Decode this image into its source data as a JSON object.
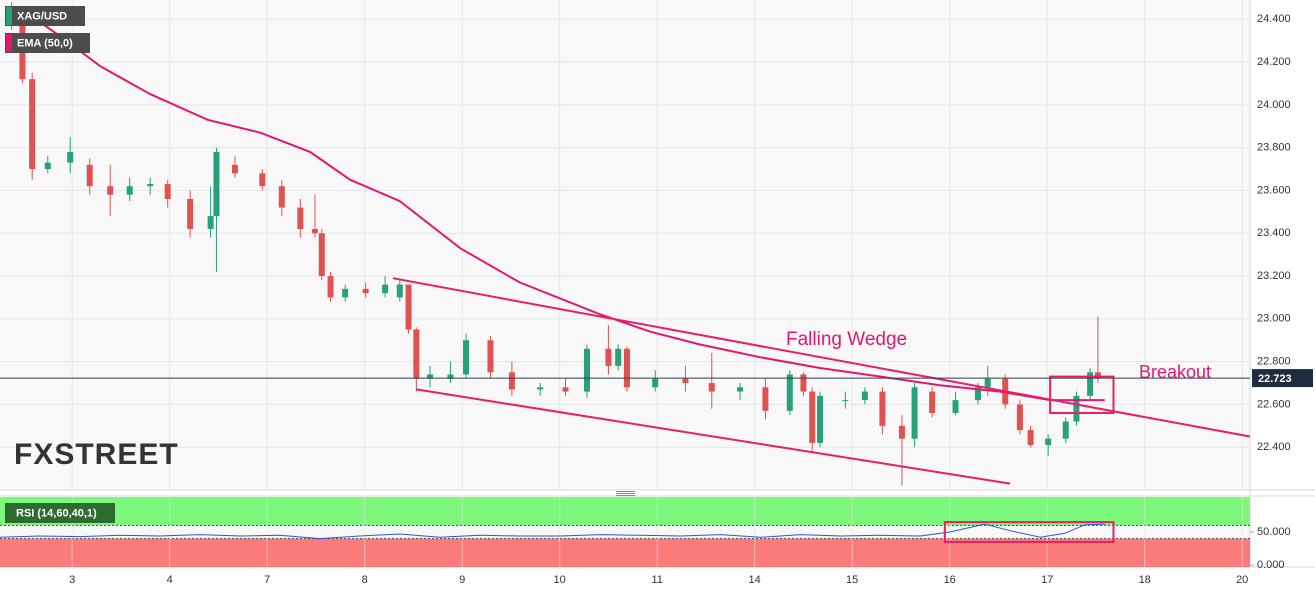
{
  "chart_data": [
    {
      "type": "candlestick",
      "series_name": "XAG/USD",
      "up_color": "#26a17b",
      "down_color": "#e0524f",
      "x": [
        0.38,
        0.49,
        0.59,
        0.75,
        0.98,
        1.18,
        1.39,
        1.59,
        1.8,
        1.98,
        2.21,
        2.42,
        2.48,
        2.67,
        2.95,
        3.15,
        3.34,
        3.49,
        3.56,
        3.65,
        3.8,
        4.01,
        4.21,
        4.36,
        4.45,
        4.53,
        4.67,
        4.88,
        5.04,
        5.29,
        5.51,
        5.8,
        6.06,
        6.28,
        6.5,
        6.6,
        6.69,
        6.98,
        7.29,
        7.56,
        7.85,
        8.11,
        8.36,
        8.5,
        8.59,
        8.67,
        8.93,
        9.13,
        9.31,
        9.51,
        9.64,
        9.82,
        10.06,
        10.29,
        10.39,
        10.57,
        10.72,
        10.83,
        11.01,
        11.19,
        11.3,
        11.44,
        11.52
      ],
      "open": [
        24.45,
        24.38,
        24.12,
        23.7,
        23.73,
        23.72,
        23.62,
        23.58,
        23.62,
        23.63,
        23.56,
        23.42,
        23.48,
        23.72,
        23.68,
        23.62,
        23.52,
        23.42,
        23.4,
        23.2,
        23.1,
        23.14,
        23.12,
        23.1,
        23.16,
        22.95,
        22.72,
        22.72,
        22.74,
        22.9,
        22.75,
        22.67,
        22.68,
        22.66,
        22.86,
        22.78,
        22.86,
        22.68,
        22.72,
        22.7,
        22.66,
        22.68,
        22.57,
        22.74,
        22.66,
        22.42,
        22.62,
        22.62,
        22.66,
        22.5,
        22.44,
        22.66,
        22.56,
        22.62,
        22.68,
        22.72,
        22.6,
        22.48,
        22.41,
        22.44,
        22.52,
        22.64,
        22.75
      ],
      "high": [
        24.48,
        24.42,
        24.15,
        23.76,
        23.85,
        23.75,
        23.72,
        23.66,
        23.66,
        23.65,
        23.6,
        23.62,
        23.8,
        23.76,
        23.7,
        23.65,
        23.56,
        23.58,
        23.42,
        23.22,
        23.16,
        23.17,
        23.2,
        23.18,
        23.16,
        22.96,
        22.78,
        22.8,
        22.93,
        22.92,
        22.8,
        22.7,
        22.72,
        22.88,
        22.97,
        22.88,
        22.87,
        22.76,
        22.78,
        22.84,
        22.7,
        22.72,
        22.76,
        22.75,
        22.68,
        22.66,
        22.66,
        22.68,
        22.68,
        22.55,
        22.7,
        22.68,
        22.66,
        22.7,
        22.78,
        22.74,
        22.62,
        22.5,
        22.46,
        22.54,
        22.66,
        22.77,
        23.01
      ],
      "low": [
        24.35,
        24.1,
        23.65,
        23.68,
        23.68,
        23.58,
        23.48,
        23.55,
        23.58,
        23.52,
        23.38,
        23.38,
        23.22,
        23.66,
        23.6,
        23.48,
        23.38,
        23.38,
        23.18,
        23.08,
        23.08,
        23.1,
        23.1,
        23.08,
        22.93,
        22.66,
        22.68,
        22.7,
        22.72,
        22.72,
        22.64,
        22.64,
        22.64,
        22.63,
        22.74,
        22.76,
        22.66,
        22.66,
        22.66,
        22.58,
        22.62,
        22.53,
        22.55,
        22.64,
        22.38,
        22.4,
        22.58,
        22.6,
        22.46,
        22.22,
        22.4,
        22.54,
        22.55,
        22.6,
        22.64,
        22.58,
        22.46,
        22.4,
        22.36,
        22.42,
        22.5,
        22.62,
        22.7
      ],
      "close": [
        24.38,
        24.12,
        23.7,
        23.73,
        23.78,
        23.62,
        23.58,
        23.62,
        23.63,
        23.56,
        23.42,
        23.48,
        23.78,
        23.68,
        23.62,
        23.52,
        23.42,
        23.4,
        23.2,
        23.1,
        23.14,
        23.12,
        23.16,
        23.16,
        22.95,
        22.72,
        22.74,
        22.74,
        22.9,
        22.75,
        22.67,
        22.68,
        22.66,
        22.86,
        22.78,
        22.86,
        22.68,
        22.72,
        22.7,
        22.66,
        22.68,
        22.57,
        22.74,
        22.66,
        22.42,
        22.64,
        22.62,
        22.66,
        22.5,
        22.44,
        22.68,
        22.56,
        22.62,
        22.68,
        22.72,
        22.6,
        22.48,
        22.41,
        22.44,
        22.52,
        22.64,
        22.75,
        22.72
      ],
      "series": [
        {
          "name": "EMA (50,0)",
          "color": "#e3186d",
          "x": [
            0.47,
            0.88,
            1.29,
            1.8,
            2.39,
            2.93,
            3.44,
            3.85,
            4.36,
            4.98,
            5.59,
            6.42,
            6.93,
            7.44,
            8.06,
            8.67,
            9.29,
            9.9,
            10.52,
            11.03,
            11.44,
            11.59
          ],
          "values": [
            24.45,
            24.32,
            24.18,
            24.05,
            23.93,
            23.87,
            23.78,
            23.65,
            23.55,
            23.33,
            23.17,
            23.02,
            22.94,
            22.88,
            22.82,
            22.77,
            22.73,
            22.69,
            22.66,
            22.62,
            22.62,
            22.62
          ]
        }
      ],
      "trendlines": [
        {
          "color": "#e91e63",
          "x": [
            4.29,
            13.08
          ],
          "values": [
            23.19,
            22.45
          ]
        },
        {
          "color": "#e91e63",
          "x": [
            4.53,
            10.62
          ],
          "values": [
            22.67,
            22.23
          ]
        }
      ],
      "boxes": [
        {
          "color": "#e91e63",
          "x": [
            11.03,
            11.68
          ],
          "values": [
            22.56,
            22.73
          ]
        }
      ],
      "annotations": [
        "Falling Wedge",
        "Breakout"
      ],
      "last_price": 22.723,
      "watermark": "FXSTREET",
      "xlim": [
        0.26,
        13.08
      ],
      "xticks": [
        {
          "value": 1,
          "label": "3"
        },
        {
          "value": 2,
          "label": "4"
        },
        {
          "value": 3,
          "label": "7"
        },
        {
          "value": 4,
          "label": "8"
        },
        {
          "value": 5,
          "label": "9"
        },
        {
          "value": 6,
          "label": "10"
        },
        {
          "value": 7,
          "label": "11"
        },
        {
          "value": 8,
          "label": "14"
        },
        {
          "value": 9,
          "label": "15"
        },
        {
          "value": 10,
          "label": "16"
        },
        {
          "value": 11,
          "label": "17"
        },
        {
          "value": 12,
          "label": "18"
        },
        {
          "value": 13,
          "label": "20"
        }
      ],
      "ylim": [
        22.2,
        24.49
      ],
      "yticks": [
        {
          "value": 22.4,
          "label": "22.400"
        },
        {
          "value": 22.6,
          "label": "22.600"
        },
        {
          "value": 22.8,
          "label": "22.800"
        },
        {
          "value": 23,
          "label": "23.000"
        },
        {
          "value": 23.2,
          "label": "23.200"
        },
        {
          "value": 23.4,
          "label": "23.400"
        },
        {
          "value": 23.6,
          "label": "23.600"
        },
        {
          "value": 23.8,
          "label": "23.800"
        },
        {
          "value": 24,
          "label": "24.000"
        },
        {
          "value": 24.2,
          "label": "24.200"
        },
        {
          "value": 24.4,
          "label": "24.400"
        }
      ],
      "grid": true
    },
    {
      "type": "line",
      "series": [
        {
          "name": "RSI (14,60,40,1)",
          "color": "#2a55d8",
          "x": [
            0.26,
            0.67,
            1.08,
            1.49,
            1.9,
            2.31,
            2.72,
            3.13,
            3.54,
            3.95,
            4.36,
            4.77,
            5.18,
            5.59,
            6.01,
            6.42,
            6.83,
            7.24,
            7.65,
            8.06,
            8.47,
            8.88,
            9.29,
            9.7,
            10.0,
            10.36,
            10.62,
            10.93,
            11.18,
            11.39,
            11.59
          ],
          "values": [
            42,
            44,
            43,
            45,
            44,
            46,
            44,
            45,
            40,
            44,
            47,
            42,
            45,
            44,
            44,
            46,
            45,
            44,
            46,
            42,
            46,
            44,
            45,
            44,
            50,
            62,
            52,
            42,
            48,
            61,
            62
          ]
        }
      ],
      "upper_band": 60,
      "lower_band": 40,
      "upper_color": "#7cf87c",
      "lower_color": "#fb7b7b",
      "boxes": [
        {
          "color": "#e91e63",
          "x": [
            9.95,
            11.68
          ],
          "values": [
            35,
            65
          ]
        }
      ],
      "ylim": [
        -3,
        103
      ],
      "yticks": [
        {
          "value": 0,
          "label": "0.000"
        },
        {
          "value": 50,
          "label": "50.000"
        }
      ]
    }
  ]
}
